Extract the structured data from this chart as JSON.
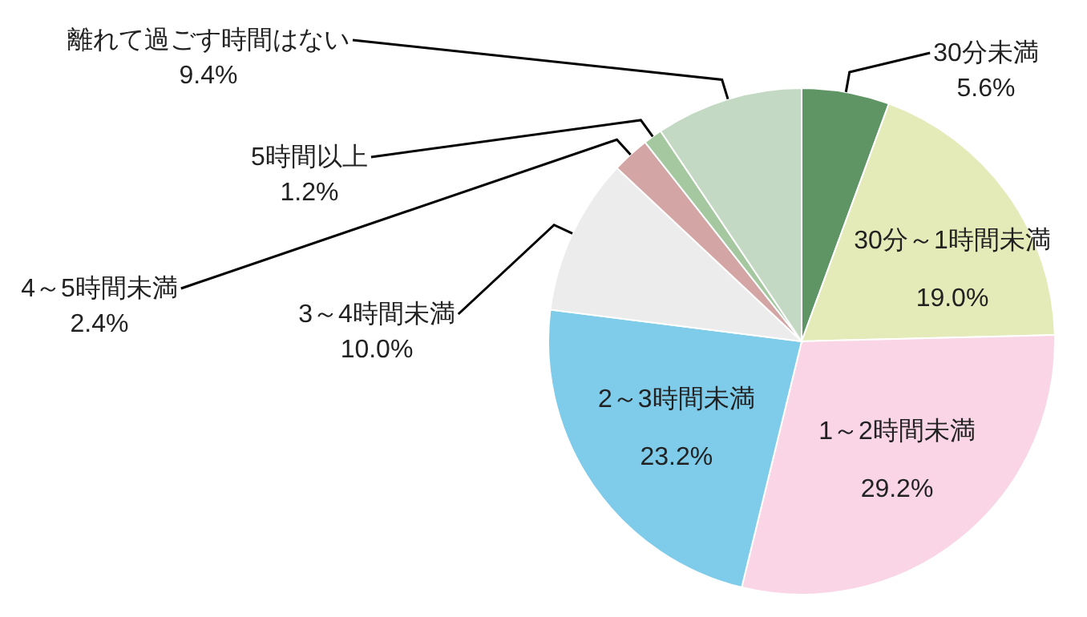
{
  "chart_data": {
    "type": "pie",
    "categories": [
      "30分未満",
      "30分～1時間未満",
      "1～2時間未満",
      "2～3時間未満",
      "3～4時間未満",
      "4～5時間未満",
      "5時間以上",
      "離れて過ごす時間はない"
    ],
    "values": [
      5.6,
      19.0,
      29.2,
      23.2,
      10.0,
      2.4,
      1.2,
      9.4
    ],
    "colors": [
      "#5f9465",
      "#e4ebb8",
      "#f9d5e5",
      "#7ecbea",
      "#ececec",
      "#d4a5a5",
      "#a6c8a0",
      "#c4d9c3"
    ],
    "value_labels": [
      "5.6%",
      "19.0%",
      "29.2%",
      "23.2%",
      "10.0%",
      "2.4%",
      "1.2%",
      "9.4%"
    ]
  }
}
